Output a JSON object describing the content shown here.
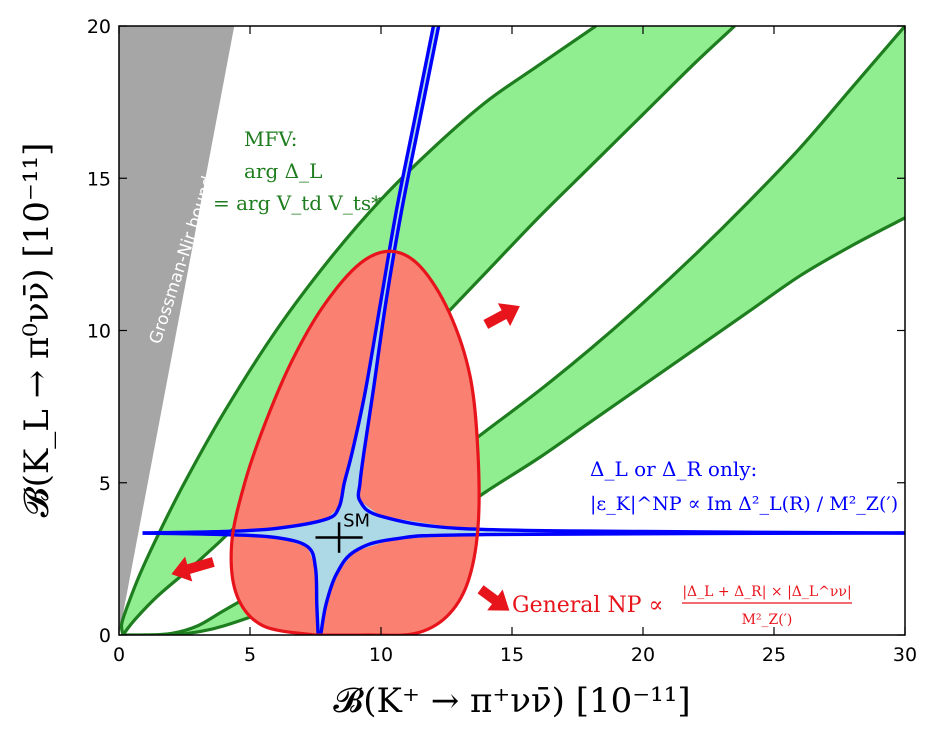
{
  "chart_data": {
    "type": "scatter",
    "x": {
      "label": "𝓑(K⁺ → π⁺νν̄)   [10⁻¹¹]",
      "lim": [
        0,
        30
      ],
      "ticks": [
        0,
        5,
        10,
        15,
        20,
        25,
        30
      ]
    },
    "y": {
      "label": "𝓑(K_L → π⁰νν̄)   [10⁻¹¹]",
      "lim": [
        0,
        20
      ],
      "ticks": [
        0,
        5,
        10,
        15,
        20
      ]
    },
    "grossman_nir": {
      "label": "Grossman-Nir bound",
      "color": "#a6a6a6",
      "polygon": [
        [
          0,
          0
        ],
        [
          0,
          20
        ],
        [
          4.4,
          20
        ]
      ]
    },
    "mfv_band": {
      "color": "#90ee90",
      "edge_color": "#1e7d1e",
      "left_band": {
        "outer": [
          [
            0.15,
            0
          ],
          [
            0.1,
            0.35
          ],
          [
            0.3,
            0.9
          ],
          [
            0.8,
            2.0
          ],
          [
            1.5,
            3.3
          ],
          [
            2.5,
            5.0
          ],
          [
            4,
            7.3
          ],
          [
            6,
            10
          ],
          [
            8,
            12.3
          ],
          [
            10,
            14.3
          ],
          [
            12,
            16
          ],
          [
            14,
            17.5
          ],
          [
            16,
            18.7
          ],
          [
            18.2,
            20
          ]
        ],
        "inner": [
          [
            0.15,
            0
          ],
          [
            0.6,
            0.5
          ],
          [
            1.5,
            1.3
          ],
          [
            3,
            2.4
          ],
          [
            4.5,
            3.6
          ],
          [
            6,
            4.9
          ],
          [
            8,
            6.6
          ],
          [
            10,
            8.3
          ],
          [
            12,
            10.1
          ],
          [
            14,
            11.9
          ],
          [
            16,
            13.7
          ],
          [
            18,
            15.4
          ],
          [
            20,
            17.1
          ],
          [
            22,
            18.8
          ],
          [
            23.5,
            20
          ]
        ]
      },
      "right_band": {
        "outer": [
          [
            0.15,
            0
          ],
          [
            1,
            0
          ],
          [
            2,
            0.05
          ],
          [
            3,
            0.3
          ],
          [
            4,
            0.8
          ],
          [
            6,
            1.8
          ],
          [
            8,
            2.9
          ],
          [
            10,
            4.2
          ],
          [
            12,
            5.4
          ],
          [
            14,
            6.7
          ],
          [
            16,
            8
          ],
          [
            18,
            9.4
          ],
          [
            20,
            10.9
          ],
          [
            22,
            12.5
          ],
          [
            24,
            14.2
          ],
          [
            26,
            16
          ],
          [
            28,
            18
          ],
          [
            30,
            20
          ]
        ],
        "inner": [
          [
            0.15,
            0
          ],
          [
            1,
            0
          ],
          [
            2,
            0
          ],
          [
            3,
            0.1
          ],
          [
            4,
            0.3
          ],
          [
            6,
            0.9
          ],
          [
            8,
            1.6
          ],
          [
            10,
            2.5
          ],
          [
            12,
            3.5
          ],
          [
            14,
            4.7
          ],
          [
            16,
            5.8
          ],
          [
            18,
            7
          ],
          [
            20,
            8.2
          ],
          [
            22,
            9.4
          ],
          [
            24,
            10.6
          ],
          [
            26,
            11.8
          ],
          [
            28,
            12.8
          ],
          [
            30,
            13.7
          ]
        ]
      },
      "label_lines": [
        "MFV:",
        "arg Δ_L",
        "= arg V_td V_ts*"
      ]
    },
    "general_np": {
      "color": "#fa8072",
      "edge_color": "#e8141c",
      "curve": [
        [
          7.5,
          0
        ],
        [
          5.5,
          0.3
        ],
        [
          4.5,
          1.3
        ],
        [
          4.3,
          3
        ],
        [
          4.8,
          5
        ],
        [
          5.6,
          7
        ],
        [
          6.6,
          9
        ],
        [
          7.8,
          10.8
        ],
        [
          9.2,
          12.2
        ],
        [
          10.4,
          12.6
        ],
        [
          11.5,
          12.1
        ],
        [
          12.6,
          10.6
        ],
        [
          13.4,
          8.5
        ],
        [
          13.7,
          6
        ],
        [
          13.7,
          3.5
        ],
        [
          13.3,
          1.7
        ],
        [
          12.5,
          0.6
        ],
        [
          11.3,
          0.05
        ],
        [
          9.5,
          0
        ]
      ],
      "label": "General NP ∝",
      "fraction_numerator": "|Δ_L + Δ_R| × |Δ_L^νν|",
      "fraction_denominator": "M²_Z(′)"
    },
    "delta_only": {
      "color": "#0000ff",
      "fill_color": "#add8e6",
      "label_line1": "Δ_L  or  Δ_R  only:",
      "label_line2": "|ε_K|^NP ∝ Im Δ²_L(R) / M²_Z(′)",
      "upper_arm_left": [
        [
          12,
          20
        ],
        [
          11.3,
          17
        ],
        [
          10.6,
          14
        ],
        [
          10.0,
          11
        ],
        [
          9.4,
          8
        ],
        [
          8.9,
          6
        ],
        [
          8.6,
          5.0
        ],
        [
          8.4,
          4.2
        ],
        [
          7.9,
          3.8
        ],
        [
          6,
          3.5
        ],
        [
          4,
          3.4
        ],
        [
          0.9,
          3.35
        ]
      ],
      "upper_arm_right": [
        [
          12.2,
          20
        ],
        [
          11.5,
          17
        ],
        [
          10.8,
          14
        ],
        [
          10.2,
          11
        ],
        [
          9.7,
          8
        ],
        [
          9.35,
          6
        ],
        [
          9.2,
          5
        ],
        [
          9.2,
          4.4
        ],
        [
          10,
          3.9
        ],
        [
          13,
          3.5
        ],
        [
          20,
          3.4
        ],
        [
          30,
          3.35
        ]
      ],
      "lower_arm_left": [
        [
          0.9,
          3.35
        ],
        [
          4,
          3.3
        ],
        [
          6,
          3.2
        ],
        [
          7.2,
          2.9
        ],
        [
          7.5,
          2.2
        ],
        [
          7.55,
          1
        ],
        [
          7.6,
          0
        ]
      ],
      "lower_arm_right": [
        [
          7.7,
          0
        ],
        [
          7.9,
          1.0
        ],
        [
          8.3,
          2.0
        ],
        [
          9.0,
          2.75
        ],
        [
          10.5,
          3.15
        ],
        [
          14,
          3.3
        ],
        [
          30,
          3.35
        ]
      ]
    },
    "sm_point": {
      "label": "SM",
      "x": 8.4,
      "y": 3.2,
      "x_err": 0.9,
      "y_err": 0.5
    },
    "arrows": [
      {
        "name": "up-right-arrow",
        "from": [
          14,
          10.2
        ],
        "to": [
          15.3,
          10.8
        ]
      },
      {
        "name": "down-left-arrow",
        "from": [
          3.6,
          2.4
        ],
        "to": [
          2.0,
          2.0
        ]
      },
      {
        "name": "down-right-arrow",
        "from": [
          13.8,
          1.5
        ],
        "to": [
          14.9,
          0.8
        ]
      }
    ],
    "arrow_color": "#e8141c"
  }
}
